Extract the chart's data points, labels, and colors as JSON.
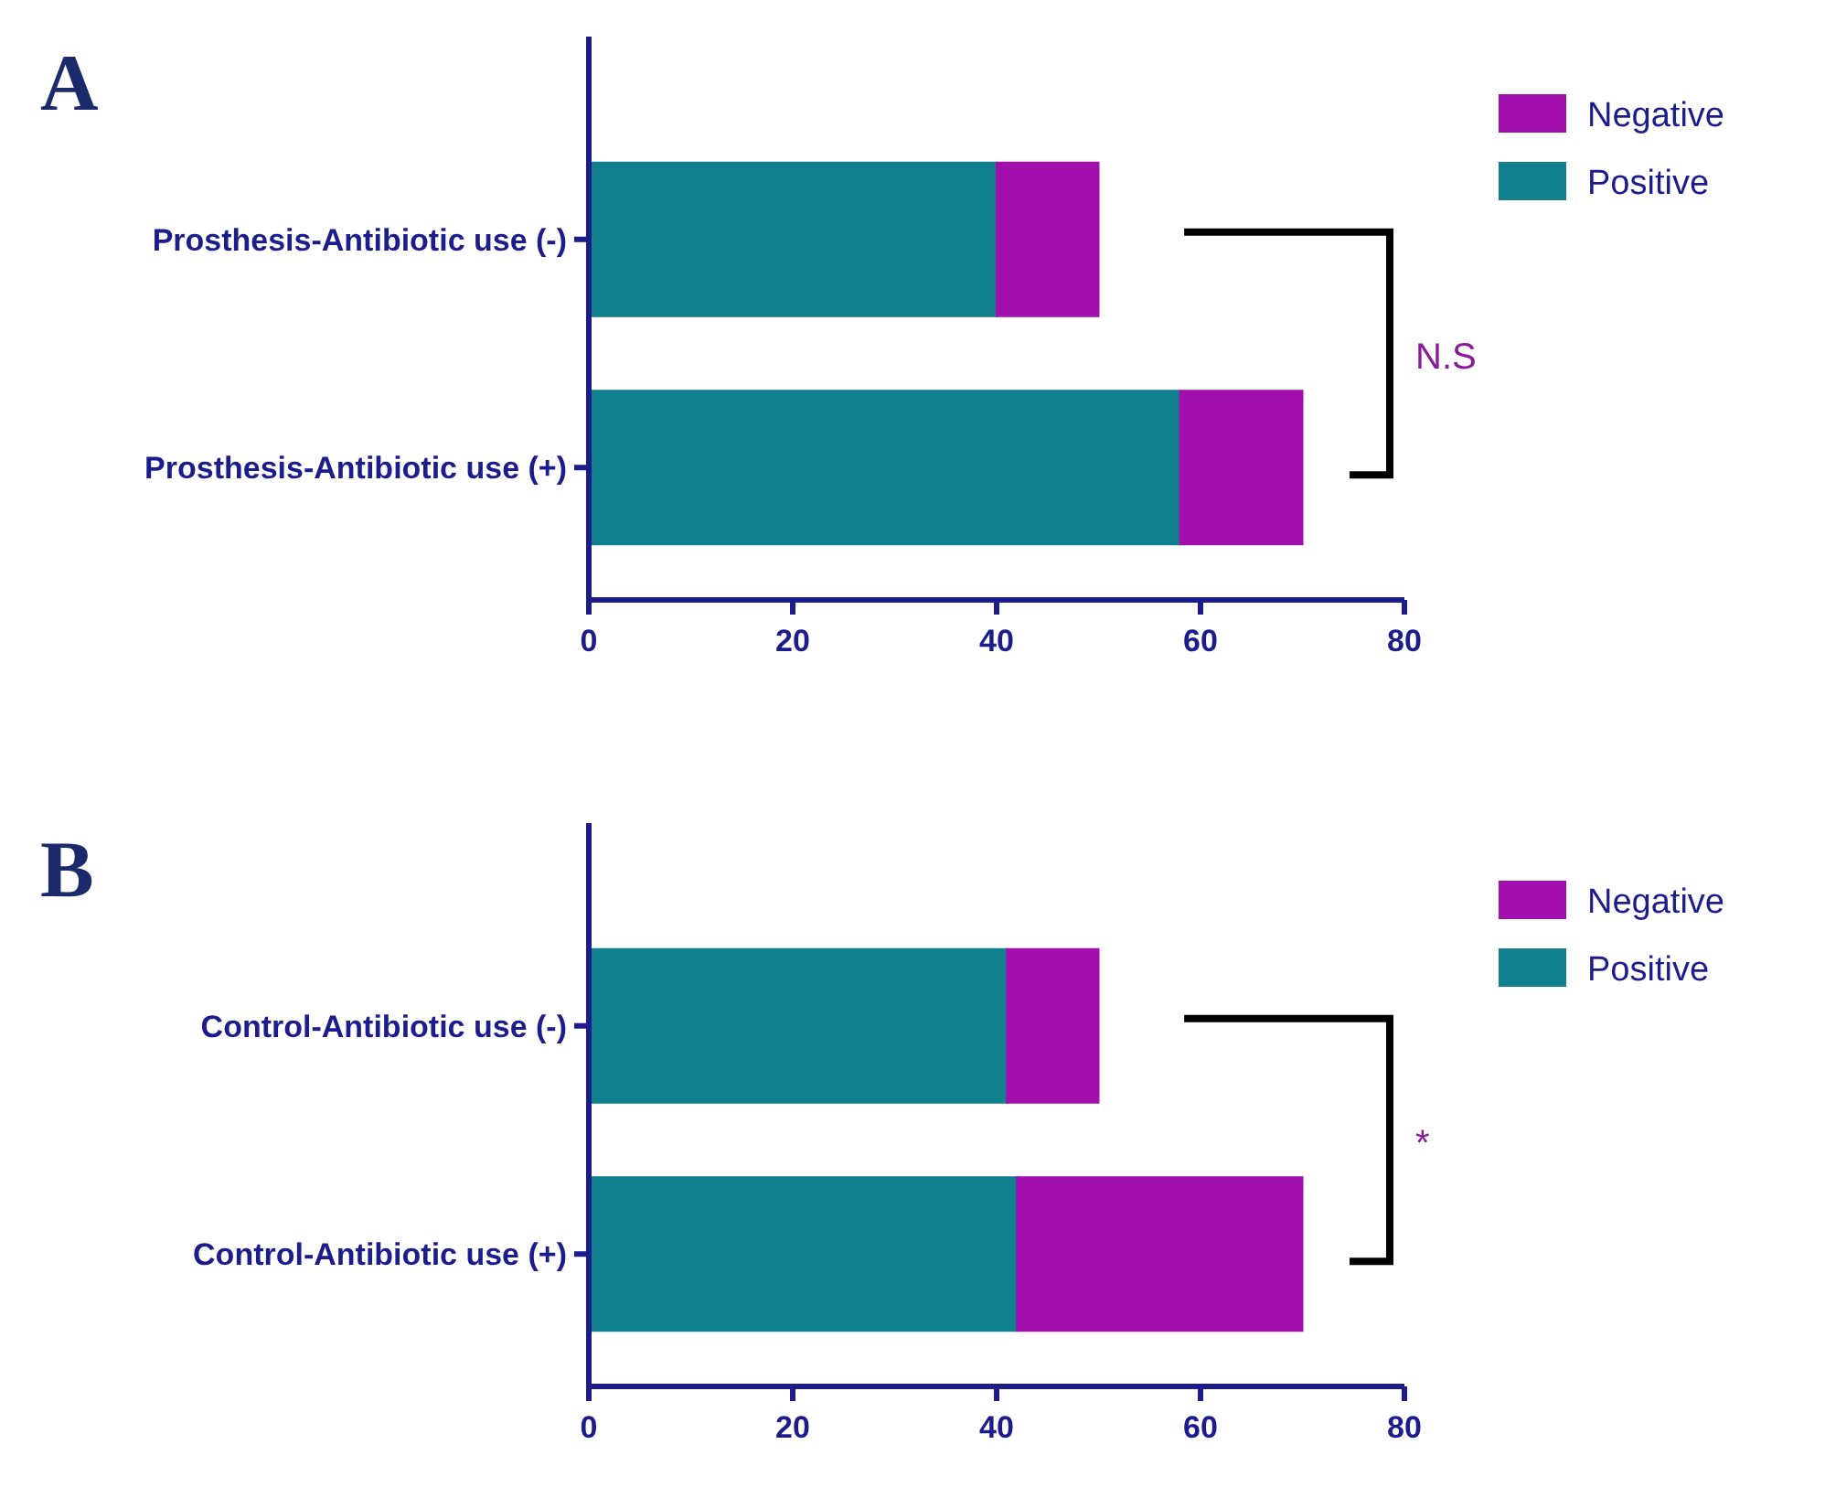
{
  "chart_data": [
    {
      "type": "bar",
      "title": "A",
      "orientation": "horizontal",
      "stacked": true,
      "categories": [
        "Prosthesis-Antibiotic use (-)",
        "Prosthesis-Antibiotic use (+)"
      ],
      "series": [
        {
          "name": "Positive",
          "color": "#10808f",
          "values": [
            40,
            58
          ]
        },
        {
          "name": "Negative",
          "color": "#a30fad",
          "values": [
            10,
            12
          ]
        }
      ],
      "xlim": [
        0,
        80
      ],
      "xticks": [
        0,
        20,
        40,
        60,
        80
      ],
      "grid": false,
      "legend": "top right",
      "annotations": [
        "N.S"
      ]
    },
    {
      "type": "bar",
      "title": "B",
      "orientation": "horizontal",
      "stacked": true,
      "categories": [
        "Control-Antibiotic use (-)",
        "Control-Antibiotic use (+)"
      ],
      "series": [
        {
          "name": "Positive",
          "color": "#10808f",
          "values": [
            41,
            42
          ]
        },
        {
          "name": "Negative",
          "color": "#a30fad",
          "values": [
            9,
            28
          ]
        }
      ],
      "xlim": [
        0,
        80
      ],
      "xticks": [
        0,
        20,
        40,
        60,
        80
      ],
      "grid": false,
      "legend": "top right",
      "annotations": [
        "*"
      ]
    }
  ]
}
